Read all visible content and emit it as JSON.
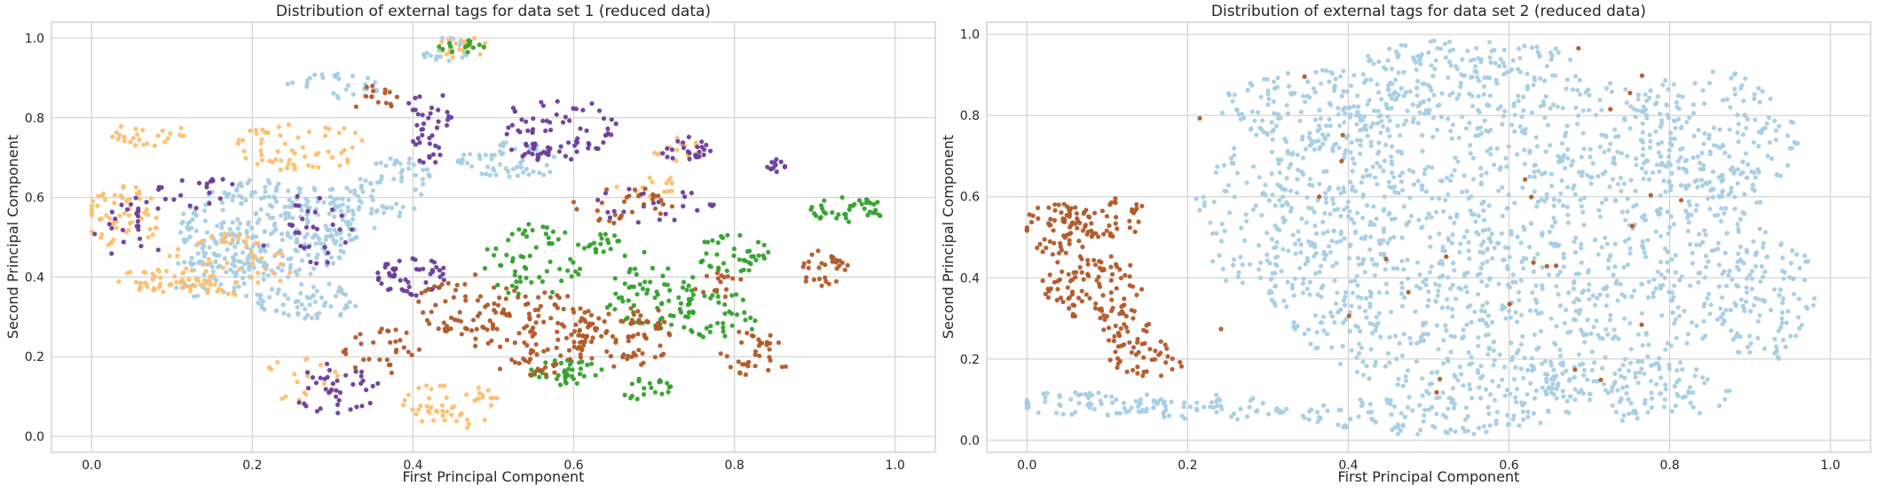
{
  "chart_data": [
    {
      "type": "scatter",
      "title": "Distribution of external tags for data set 1 (reduced data)",
      "xlabel": "First Principal Component",
      "ylabel": "Second Principal Component",
      "xlim": [
        -0.05,
        1.05
      ],
      "ylim": [
        -0.04,
        1.04
      ],
      "xticks": [
        "0.0",
        "0.2",
        "0.4",
        "0.6",
        "0.8",
        "1.0"
      ],
      "yticks": [
        "0.0",
        "0.2",
        "0.4",
        "0.6",
        "0.8",
        "1.0"
      ],
      "grid": true,
      "legend": "none",
      "series": [
        {
          "color": "#a6cee3",
          "clusters": [
            {
              "x": 0.22,
              "y": 0.52,
              "sx": 0.07,
              "sy": 0.08,
              "n": 300
            },
            {
              "x": 0.27,
              "y": 0.34,
              "sx": 0.04,
              "sy": 0.03,
              "n": 60
            },
            {
              "x": 0.16,
              "y": 0.4,
              "sx": 0.04,
              "sy": 0.04,
              "n": 60
            },
            {
              "x": 0.31,
              "y": 0.56,
              "sx": 0.03,
              "sy": 0.05,
              "n": 50
            },
            {
              "x": 0.38,
              "y": 0.63,
              "sx": 0.03,
              "sy": 0.05,
              "n": 50
            },
            {
              "x": 0.52,
              "y": 0.69,
              "sx": 0.04,
              "sy": 0.03,
              "n": 60
            },
            {
              "x": 0.3,
              "y": 0.88,
              "sx": 0.04,
              "sy": 0.02,
              "n": 30
            },
            {
              "x": 0.44,
              "y": 0.97,
              "sx": 0.02,
              "sy": 0.02,
              "n": 20
            }
          ]
        },
        {
          "color": "#fdbf6f",
          "clusters": [
            {
              "x": 0.04,
              "y": 0.55,
              "sx": 0.03,
              "sy": 0.05,
              "n": 60
            },
            {
              "x": 0.09,
              "y": 0.39,
              "sx": 0.04,
              "sy": 0.02,
              "n": 45
            },
            {
              "x": 0.17,
              "y": 0.43,
              "sx": 0.05,
              "sy": 0.05,
              "n": 60
            },
            {
              "x": 0.26,
              "y": 0.73,
              "sx": 0.05,
              "sy": 0.04,
              "n": 60
            },
            {
              "x": 0.07,
              "y": 0.76,
              "sx": 0.03,
              "sy": 0.02,
              "n": 25
            },
            {
              "x": 0.45,
              "y": 0.08,
              "sx": 0.04,
              "sy": 0.04,
              "n": 50
            },
            {
              "x": 0.46,
              "y": 0.98,
              "sx": 0.02,
              "sy": 0.02,
              "n": 20
            },
            {
              "x": 0.73,
              "y": 0.72,
              "sx": 0.02,
              "sy": 0.02,
              "n": 15
            },
            {
              "x": 0.7,
              "y": 0.62,
              "sx": 0.03,
              "sy": 0.02,
              "n": 15
            },
            {
              "x": 0.26,
              "y": 0.14,
              "sx": 0.03,
              "sy": 0.04,
              "n": 20
            }
          ]
        },
        {
          "color": "#6a3d9a",
          "clusters": [
            {
              "x": 0.4,
              "y": 0.4,
              "sx": 0.03,
              "sy": 0.03,
              "n": 50
            },
            {
              "x": 0.58,
              "y": 0.77,
              "sx": 0.05,
              "sy": 0.05,
              "n": 80
            },
            {
              "x": 0.42,
              "y": 0.78,
              "sx": 0.02,
              "sy": 0.06,
              "n": 40
            },
            {
              "x": 0.74,
              "y": 0.72,
              "sx": 0.02,
              "sy": 0.02,
              "n": 25
            },
            {
              "x": 0.85,
              "y": 0.68,
              "sx": 0.01,
              "sy": 0.01,
              "n": 12
            },
            {
              "x": 0.3,
              "y": 0.12,
              "sx": 0.04,
              "sy": 0.04,
              "n": 40
            },
            {
              "x": 0.05,
              "y": 0.52,
              "sx": 0.03,
              "sy": 0.05,
              "n": 25
            },
            {
              "x": 0.27,
              "y": 0.52,
              "sx": 0.04,
              "sy": 0.06,
              "n": 30
            },
            {
              "x": 0.7,
              "y": 0.58,
              "sx": 0.05,
              "sy": 0.03,
              "n": 25
            },
            {
              "x": 0.13,
              "y": 0.62,
              "sx": 0.03,
              "sy": 0.03,
              "n": 20
            }
          ]
        },
        {
          "color": "#33a02c",
          "clusters": [
            {
              "x": 0.55,
              "y": 0.44,
              "sx": 0.04,
              "sy": 0.06,
              "n": 60
            },
            {
              "x": 0.7,
              "y": 0.35,
              "sx": 0.04,
              "sy": 0.05,
              "n": 70
            },
            {
              "x": 0.78,
              "y": 0.3,
              "sx": 0.03,
              "sy": 0.04,
              "n": 40
            },
            {
              "x": 0.8,
              "y": 0.46,
              "sx": 0.03,
              "sy": 0.03,
              "n": 40
            },
            {
              "x": 0.94,
              "y": 0.57,
              "sx": 0.03,
              "sy": 0.02,
              "n": 40
            },
            {
              "x": 0.59,
              "y": 0.16,
              "sx": 0.03,
              "sy": 0.02,
              "n": 40
            },
            {
              "x": 0.69,
              "y": 0.12,
              "sx": 0.02,
              "sy": 0.02,
              "n": 20
            },
            {
              "x": 0.46,
              "y": 0.98,
              "sx": 0.02,
              "sy": 0.01,
              "n": 15
            },
            {
              "x": 0.65,
              "y": 0.48,
              "sx": 0.03,
              "sy": 0.02,
              "n": 20
            }
          ]
        },
        {
          "color": "#b15928",
          "clusters": [
            {
              "x": 0.55,
              "y": 0.26,
              "sx": 0.05,
              "sy": 0.07,
              "n": 110
            },
            {
              "x": 0.66,
              "y": 0.25,
              "sx": 0.04,
              "sy": 0.06,
              "n": 80
            },
            {
              "x": 0.47,
              "y": 0.33,
              "sx": 0.04,
              "sy": 0.05,
              "n": 60
            },
            {
              "x": 0.83,
              "y": 0.21,
              "sx": 0.03,
              "sy": 0.04,
              "n": 35
            },
            {
              "x": 0.91,
              "y": 0.42,
              "sx": 0.02,
              "sy": 0.03,
              "n": 30
            },
            {
              "x": 0.66,
              "y": 0.58,
              "sx": 0.04,
              "sy": 0.03,
              "n": 30
            },
            {
              "x": 0.36,
              "y": 0.22,
              "sx": 0.03,
              "sy": 0.04,
              "n": 30
            },
            {
              "x": 0.35,
              "y": 0.85,
              "sx": 0.02,
              "sy": 0.02,
              "n": 15
            },
            {
              "x": 0.78,
              "y": 0.38,
              "sx": 0.02,
              "sy": 0.02,
              "n": 15
            }
          ]
        }
      ]
    },
    {
      "type": "scatter",
      "title": "Distribution of external tags for data set 2 (reduced data)",
      "xlabel": "First Principal Component",
      "ylabel": "Second Principal Component",
      "xlim": [
        -0.05,
        1.05
      ],
      "ylim": [
        -0.03,
        1.03
      ],
      "xticks": [
        "0.0",
        "0.2",
        "0.4",
        "0.6",
        "0.8",
        "1.0"
      ],
      "yticks": [
        "0.0",
        "0.2",
        "0.4",
        "0.6",
        "0.8",
        "1.0"
      ],
      "grid": true,
      "legend": "none",
      "series": [
        {
          "color": "#a6cee3",
          "clusters": [
            {
              "x": 0.6,
              "y": 0.5,
              "sx": 0.2,
              "sy": 0.26,
              "n": 1400
            },
            {
              "x": 0.37,
              "y": 0.82,
              "sx": 0.08,
              "sy": 0.06,
              "n": 160
            },
            {
              "x": 0.85,
              "y": 0.75,
              "sx": 0.07,
              "sy": 0.1,
              "n": 160
            },
            {
              "x": 0.55,
              "y": 0.94,
              "sx": 0.08,
              "sy": 0.03,
              "n": 90
            },
            {
              "x": 0.3,
              "y": 0.55,
              "sx": 0.06,
              "sy": 0.12,
              "n": 120
            },
            {
              "x": 0.92,
              "y": 0.35,
              "sx": 0.04,
              "sy": 0.1,
              "n": 100
            },
            {
              "x": 0.5,
              "y": 0.06,
              "sx": 0.1,
              "sy": 0.03,
              "n": 110
            },
            {
              "x": 0.08,
              "y": 0.09,
              "sx": 0.06,
              "sy": 0.02,
              "n": 70
            },
            {
              "x": 0.23,
              "y": 0.08,
              "sx": 0.06,
              "sy": 0.02,
              "n": 50
            },
            {
              "x": 0.75,
              "y": 0.12,
              "sx": 0.08,
              "sy": 0.05,
              "n": 100
            }
          ]
        },
        {
          "color": "#b15928",
          "clusters": [
            {
              "x": 0.04,
              "y": 0.52,
              "sx": 0.03,
              "sy": 0.04,
              "n": 70
            },
            {
              "x": 0.08,
              "y": 0.38,
              "sx": 0.04,
              "sy": 0.05,
              "n": 90
            },
            {
              "x": 0.12,
              "y": 0.28,
              "sx": 0.02,
              "sy": 0.03,
              "n": 30
            },
            {
              "x": 0.15,
              "y": 0.2,
              "sx": 0.03,
              "sy": 0.03,
              "n": 40
            },
            {
              "x": 0.1,
              "y": 0.55,
              "sx": 0.03,
              "sy": 0.04,
              "n": 40
            },
            {
              "x": 0.55,
              "y": 0.55,
              "sx": 0.25,
              "sy": 0.28,
              "n": 28
            }
          ]
        }
      ]
    }
  ]
}
